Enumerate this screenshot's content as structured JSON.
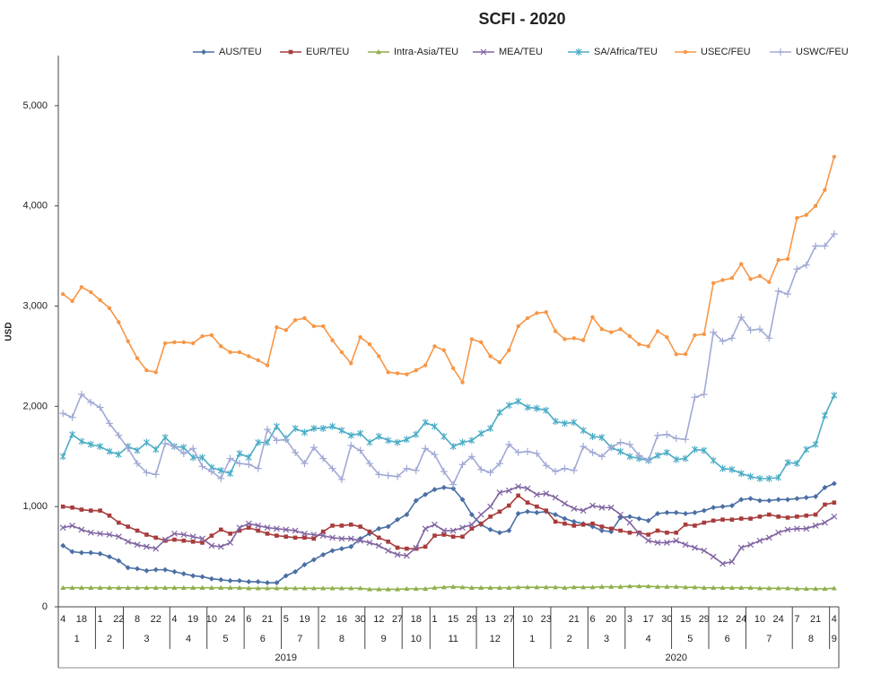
{
  "chart_data": {
    "type": "line",
    "title": "SCFI - 2020",
    "y_label": "USD",
    "ylim": [
      0,
      5500
    ],
    "yticks": [
      0,
      {
        "value": 1000,
        "label": "1,000"
      },
      {
        "value": 2000,
        "label": "2,000"
      },
      {
        "value": 3000,
        "label": "3,000"
      },
      {
        "value": 4000,
        "label": "4,000"
      },
      {
        "value": 5000,
        "label": "5,000"
      }
    ],
    "grid": false,
    "legend": "top",
    "categories": [
      4,
      null,
      18,
      null,
      1,
      null,
      22,
      null,
      8,
      null,
      22,
      null,
      4,
      null,
      19,
      null,
      10,
      null,
      24,
      null,
      6,
      null,
      21,
      null,
      5,
      null,
      19,
      null,
      2,
      null,
      16,
      null,
      30,
      null,
      12,
      null,
      27,
      null,
      18,
      null,
      1,
      null,
      15,
      null,
      29,
      null,
      13,
      null,
      27,
      null,
      10,
      null,
      23,
      null,
      null,
      21,
      null,
      6,
      null,
      20,
      null,
      3,
      null,
      17,
      null,
      30,
      null,
      15,
      null,
      29,
      null,
      12,
      null,
      24,
      null,
      10,
      null,
      24,
      null,
      7,
      null,
      21,
      null,
      4
    ],
    "months": [
      1,
      1,
      1,
      1,
      2,
      2,
      2,
      3,
      3,
      3,
      3,
      3,
      4,
      4,
      4,
      4,
      5,
      5,
      5,
      5,
      6,
      6,
      6,
      6,
      7,
      7,
      7,
      7,
      8,
      8,
      8,
      8,
      8,
      9,
      9,
      9,
      9,
      10,
      10,
      10,
      11,
      11,
      11,
      11,
      11,
      12,
      12,
      12,
      12,
      1,
      1,
      1,
      1,
      2,
      2,
      2,
      2,
      3,
      3,
      3,
      3,
      4,
      4,
      4,
      4,
      4,
      5,
      5,
      5,
      5,
      6,
      6,
      6,
      6,
      7,
      7,
      7,
      7,
      7,
      8,
      8,
      8,
      8,
      9
    ],
    "years": [
      2019,
      2019,
      2019,
      2019,
      2019,
      2019,
      2019,
      2019,
      2019,
      2019,
      2019,
      2019,
      2019,
      2019,
      2019,
      2019,
      2019,
      2019,
      2019,
      2019,
      2019,
      2019,
      2019,
      2019,
      2019,
      2019,
      2019,
      2019,
      2019,
      2019,
      2019,
      2019,
      2019,
      2019,
      2019,
      2019,
      2019,
      2019,
      2019,
      2019,
      2019,
      2019,
      2019,
      2019,
      2019,
      2019,
      2019,
      2019,
      2019,
      2020,
      2020,
      2020,
      2020,
      2020,
      2020,
      2020,
      2020,
      2020,
      2020,
      2020,
      2020,
      2020,
      2020,
      2020,
      2020,
      2020,
      2020,
      2020,
      2020,
      2020,
      2020,
      2020,
      2020,
      2020,
      2020,
      2020,
      2020,
      2020,
      2020,
      2020,
      2020,
      2020,
      2020,
      2020
    ],
    "series": [
      {
        "name": "AUS/TEU",
        "color": "#4a6fa5",
        "marker": "diamond",
        "values": [
          610,
          550,
          540,
          540,
          530,
          500,
          460,
          390,
          380,
          360,
          370,
          370,
          350,
          330,
          310,
          300,
          280,
          270,
          260,
          260,
          250,
          250,
          240,
          240,
          310,
          350,
          420,
          470,
          520,
          560,
          580,
          600,
          680,
          730,
          780,
          800,
          870,
          920,
          1060,
          1120,
          1170,
          1190,
          1180,
          1070,
          920,
          820,
          770,
          740,
          760,
          930,
          950,
          940,
          950,
          920,
          880,
          850,
          830,
          800,
          760,
          750,
          890,
          900,
          880,
          860,
          930,
          940,
          940,
          930,
          940,
          960,
          990,
          1000,
          1010,
          1070,
          1080,
          1060,
          1060,
          1070,
          1070,
          1080,
          1090,
          1100,
          1190,
          1230
        ]
      },
      {
        "name": "EUR/TEU",
        "color": "#a83c3c",
        "marker": "square",
        "values": [
          1000,
          990,
          970,
          960,
          960,
          910,
          840,
          800,
          760,
          720,
          690,
          660,
          670,
          660,
          650,
          640,
          710,
          770,
          730,
          760,
          790,
          760,
          730,
          710,
          700,
          690,
          690,
          680,
          750,
          810,
          810,
          820,
          800,
          750,
          690,
          650,
          590,
          580,
          580,
          600,
          710,
          720,
          700,
          700,
          780,
          830,
          900,
          950,
          1010,
          1110,
          1040,
          1000,
          960,
          850,
          830,
          810,
          820,
          830,
          800,
          780,
          760,
          740,
          740,
          720,
          760,
          740,
          740,
          820,
          810,
          840,
          860,
          870,
          870,
          880,
          880,
          900,
          920,
          900,
          890,
          900,
          910,
          920,
          1020,
          1040
        ]
      },
      {
        "name": "Intra-Asia/TEU",
        "color": "#8fb04a",
        "marker": "triangle",
        "values": [
          190,
          190,
          190,
          190,
          190,
          190,
          190,
          190,
          190,
          190,
          190,
          190,
          190,
          190,
          190,
          190,
          190,
          190,
          190,
          190,
          185,
          185,
          185,
          185,
          185,
          185,
          185,
          185,
          185,
          185,
          185,
          185,
          185,
          175,
          175,
          175,
          175,
          180,
          180,
          180,
          190,
          195,
          200,
          195,
          190,
          190,
          190,
          190,
          190,
          195,
          195,
          195,
          195,
          195,
          190,
          195,
          195,
          195,
          200,
          200,
          200,
          205,
          205,
          205,
          200,
          200,
          200,
          195,
          195,
          190,
          190,
          190,
          190,
          190,
          190,
          185,
          185,
          185,
          185,
          180,
          180,
          180,
          180,
          185
        ]
      },
      {
        "name": "MEA/TEU",
        "color": "#8064a2",
        "marker": "x",
        "values": [
          790,
          810,
          770,
          740,
          730,
          720,
          700,
          650,
          620,
          600,
          580,
          670,
          730,
          720,
          700,
          680,
          610,
          600,
          640,
          790,
          830,
          810,
          790,
          780,
          770,
          760,
          730,
          720,
          710,
          690,
          680,
          680,
          660,
          640,
          610,
          560,
          520,
          510,
          590,
          780,
          820,
          760,
          760,
          790,
          820,
          920,
          1000,
          1140,
          1160,
          1200,
          1180,
          1120,
          1130,
          1090,
          1030,
          980,
          960,
          1010,
          990,
          990,
          920,
          840,
          730,
          660,
          640,
          640,
          660,
          620,
          590,
          560,
          500,
          430,
          450,
          590,
          620,
          660,
          690,
          740,
          770,
          780,
          780,
          810,
          840,
          900
        ]
      },
      {
        "name": "SA/Africa/TEU",
        "color": "#4bacc6",
        "marker": "asterisk",
        "values": [
          1500,
          1720,
          1650,
          1620,
          1600,
          1550,
          1520,
          1600,
          1560,
          1640,
          1570,
          1690,
          1600,
          1590,
          1490,
          1490,
          1390,
          1360,
          1330,
          1530,
          1490,
          1640,
          1640,
          1800,
          1680,
          1780,
          1740,
          1780,
          1780,
          1800,
          1760,
          1710,
          1730,
          1640,
          1700,
          1660,
          1640,
          1670,
          1720,
          1840,
          1800,
          1700,
          1600,
          1640,
          1660,
          1730,
          1780,
          1940,
          2010,
          2050,
          1990,
          1980,
          1960,
          1850,
          1830,
          1840,
          1760,
          1700,
          1690,
          1590,
          1550,
          1500,
          1480,
          1460,
          1510,
          1540,
          1470,
          1480,
          1570,
          1560,
          1460,
          1380,
          1370,
          1330,
          1300,
          1280,
          1280,
          1290,
          1440,
          1430,
          1570,
          1620,
          1910,
          2110
        ]
      },
      {
        "name": "USEC/FEU",
        "color": "#f79646",
        "marker": "circle",
        "values": [
          3120,
          3050,
          3190,
          3140,
          3060,
          2980,
          2840,
          2650,
          2480,
          2360,
          2340,
          2630,
          2640,
          2640,
          2630,
          2700,
          2710,
          2600,
          2540,
          2540,
          2500,
          2460,
          2410,
          2790,
          2760,
          2860,
          2880,
          2800,
          2800,
          2660,
          2540,
          2430,
          2690,
          2620,
          2500,
          2340,
          2330,
          2320,
          2360,
          2410,
          2600,
          2560,
          2380,
          2240,
          2670,
          2640,
          2500,
          2440,
          2560,
          2800,
          2880,
          2930,
          2940,
          2750,
          2670,
          2680,
          2660,
          2890,
          2770,
          2740,
          2770,
          2700,
          2620,
          2600,
          2750,
          2690,
          2520,
          2520,
          2710,
          2720,
          3230,
          3260,
          3280,
          3420,
          3270,
          3300,
          3240,
          3460,
          3470,
          3880,
          3910,
          4000,
          4160,
          4490
        ]
      },
      {
        "name": "USWC/FEU",
        "color": "#a0a9d4",
        "marker": "plus",
        "values": [
          1930,
          1890,
          2120,
          2040,
          1990,
          1830,
          1710,
          1580,
          1430,
          1340,
          1320,
          1630,
          1600,
          1530,
          1580,
          1400,
          1350,
          1280,
          1480,
          1430,
          1420,
          1380,
          1770,
          1660,
          1670,
          1540,
          1430,
          1590,
          1480,
          1380,
          1270,
          1610,
          1560,
          1430,
          1320,
          1310,
          1300,
          1380,
          1360,
          1580,
          1520,
          1350,
          1220,
          1420,
          1500,
          1370,
          1340,
          1430,
          1620,
          1540,
          1550,
          1530,
          1410,
          1350,
          1380,
          1360,
          1600,
          1540,
          1500,
          1590,
          1640,
          1620,
          1510,
          1460,
          1710,
          1720,
          1680,
          1670,
          2090,
          2120,
          2740,
          2650,
          2680,
          2890,
          2760,
          2770,
          2680,
          3150,
          3120,
          3370,
          3410,
          3600,
          3600,
          3720
        ]
      }
    ]
  }
}
